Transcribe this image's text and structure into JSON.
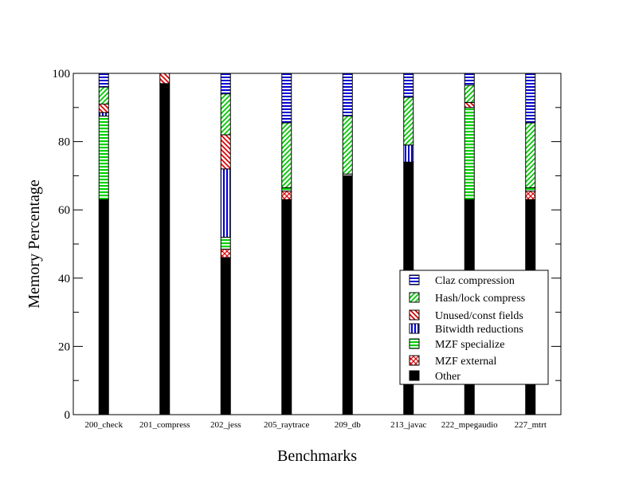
{
  "chart_data": {
    "type": "bar",
    "stacked": true,
    "xlabel": "Benchmarks",
    "ylabel": "Memory Percentage",
    "ylim": [
      0,
      100
    ],
    "yticks": [
      0,
      20,
      40,
      60,
      80,
      100
    ],
    "legend_position": "bottom-right",
    "categories": [
      "200_check",
      "201_compress",
      "202_jess",
      "205_raytrace",
      "209_db",
      "213_javac",
      "222_mpegaudio",
      "227_mtrt"
    ],
    "series": [
      {
        "name": "Other",
        "pattern": "solid-black",
        "values": [
          63,
          97,
          46,
          63,
          70,
          74,
          63,
          63
        ]
      },
      {
        "name": "MZF external",
        "pattern": "red-crosshatch",
        "values": [
          0,
          0,
          2.5,
          2.5,
          0,
          0,
          0,
          2.5
        ]
      },
      {
        "name": "MZF specialize",
        "pattern": "green-horizontal",
        "values": [
          24.5,
          0,
          3.5,
          1,
          0.5,
          0,
          27,
          1
        ]
      },
      {
        "name": "Bitwidth reductions",
        "pattern": "blue-vertical",
        "values": [
          1,
          0,
          20,
          0,
          0,
          5,
          0,
          0
        ]
      },
      {
        "name": "Unused/const fields",
        "pattern": "red-diagonal",
        "values": [
          2.5,
          3,
          10,
          0,
          0,
          0,
          1.5,
          0
        ]
      },
      {
        "name": "Hash/lock compress",
        "pattern": "green-diagonal",
        "values": [
          5,
          0,
          12,
          19,
          17,
          14,
          5,
          19
        ]
      },
      {
        "name": "Claz compression",
        "pattern": "blue-horizontal",
        "values": [
          4,
          0,
          6,
          14.5,
          12.5,
          7,
          3.5,
          14.5
        ]
      }
    ],
    "legend_order": [
      "Claz compression",
      "Hash/lock compress",
      "Unused/const fields",
      "Bitwidth reductions",
      "MZF specialize",
      "MZF external",
      "Other"
    ]
  }
}
